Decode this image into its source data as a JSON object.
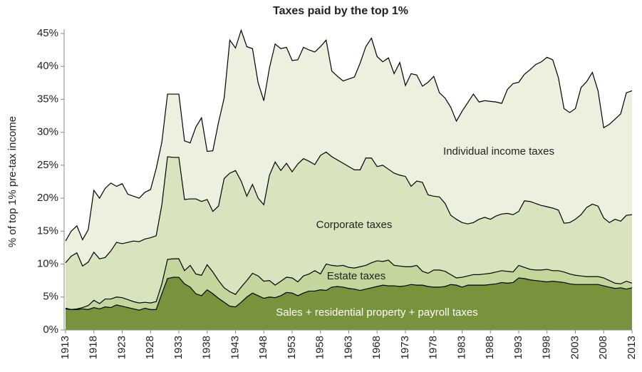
{
  "chart_data": {
    "type": "stacked-area",
    "title": "Taxes paid by the top 1%",
    "y_label": "% of top 1% pre-tax income",
    "x": [
      1913,
      1914,
      1915,
      1916,
      1917,
      1918,
      1919,
      1920,
      1921,
      1922,
      1923,
      1924,
      1925,
      1926,
      1927,
      1928,
      1929,
      1930,
      1931,
      1932,
      1933,
      1934,
      1935,
      1936,
      1937,
      1938,
      1939,
      1940,
      1941,
      1942,
      1943,
      1944,
      1945,
      1946,
      1947,
      1948,
      1949,
      1950,
      1951,
      1952,
      1953,
      1954,
      1955,
      1956,
      1957,
      1958,
      1959,
      1960,
      1961,
      1962,
      1963,
      1964,
      1965,
      1966,
      1967,
      1968,
      1969,
      1970,
      1971,
      1972,
      1973,
      1974,
      1975,
      1976,
      1977,
      1978,
      1979,
      1980,
      1981,
      1982,
      1983,
      1984,
      1985,
      1986,
      1987,
      1988,
      1989,
      1990,
      1991,
      1992,
      1993,
      1994,
      1995,
      1996,
      1997,
      1998,
      1999,
      2000,
      2001,
      2002,
      2003,
      2004,
      2005,
      2006,
      2007,
      2008,
      2009,
      2010,
      2011,
      2012,
      2013
    ],
    "series": [
      {
        "name": "Sales + residential property + payroll taxes",
        "color": "#77933c",
        "values": [
          3.2,
          3.1,
          3.1,
          3.2,
          3.1,
          3.4,
          3.2,
          3.5,
          3.4,
          3.8,
          3.6,
          3.4,
          3.2,
          3.0,
          3.3,
          3.1,
          3.1,
          5.5,
          7.8,
          8.0,
          8.0,
          7.0,
          6.5,
          5.5,
          5.2,
          6.1,
          5.5,
          4.8,
          4.2,
          3.6,
          3.5,
          4.2,
          5.0,
          5.6,
          5.2,
          4.8,
          5.0,
          4.9,
          5.2,
          5.7,
          5.6,
          5.2,
          5.6,
          5.9,
          5.9,
          6.1,
          6.0,
          6.5,
          6.6,
          6.5,
          6.3,
          6.2,
          6.0,
          6.2,
          6.4,
          6.6,
          6.8,
          6.7,
          6.7,
          6.6,
          6.7,
          6.9,
          6.8,
          6.8,
          6.6,
          6.5,
          6.5,
          6.6,
          6.9,
          6.8,
          6.5,
          6.8,
          6.8,
          6.8,
          6.8,
          6.9,
          7.0,
          7.2,
          7.1,
          7.2,
          7.9,
          7.8,
          7.6,
          7.5,
          7.4,
          7.3,
          7.4,
          7.3,
          7.2,
          7.0,
          6.9,
          6.9,
          6.9,
          6.9,
          6.9,
          6.7,
          6.5,
          6.3,
          6.4,
          6.2,
          6.4
        ]
      },
      {
        "name": "Estate taxes",
        "color": "#c3d69b",
        "values": [
          0.1,
          0.0,
          0.1,
          0.2,
          0.6,
          1.1,
          0.8,
          1.2,
          1.3,
          1.2,
          1.3,
          1.2,
          1.1,
          1.1,
          0.9,
          1.0,
          1.2,
          1.5,
          2.9,
          2.8,
          2.8,
          2.0,
          3.3,
          3.0,
          3.1,
          3.8,
          3.3,
          2.7,
          2.2,
          2.2,
          1.9,
          2.3,
          2.5,
          3.0,
          3.0,
          2.6,
          2.5,
          1.9,
          2.2,
          2.3,
          2.3,
          2.1,
          2.6,
          2.6,
          3.1,
          2.4,
          4.0,
          3.3,
          3.1,
          3.3,
          3.2,
          3.2,
          3.6,
          3.6,
          3.8,
          3.9,
          3.6,
          3.9,
          3.1,
          3.1,
          2.9,
          2.7,
          3.0,
          2.1,
          2.0,
          2.6,
          2.6,
          2.3,
          1.5,
          1.1,
          1.5,
          1.4,
          1.6,
          1.6,
          1.7,
          1.7,
          1.8,
          1.8,
          1.8,
          1.6,
          1.9,
          1.7,
          1.6,
          1.6,
          1.7,
          1.9,
          1.6,
          1.7,
          1.6,
          1.5,
          1.4,
          1.3,
          1.2,
          1.2,
          1.2,
          1.2,
          1.0,
          0.8,
          0.6,
          1.2,
          0.7
        ]
      },
      {
        "name": "Corporate taxes",
        "color": "#d7e4bd",
        "values": [
          6.9,
          8.1,
          8.5,
          6.3,
          6.6,
          7.3,
          6.8,
          6.3,
          7.3,
          8.3,
          8.2,
          8.7,
          9.2,
          9.3,
          9.6,
          9.9,
          10.0,
          12.0,
          15.6,
          15.4,
          15.4,
          10.8,
          10.1,
          11.4,
          11.2,
          9.9,
          9.2,
          11.3,
          16.6,
          18.0,
          18.8,
          16.1,
          12.8,
          13.5,
          11.8,
          11.6,
          16.0,
          18.7,
          16.8,
          17.3,
          16.1,
          17.9,
          17.8,
          17.1,
          16.1,
          18.0,
          17.0,
          16.5,
          16.1,
          15.5,
          15.3,
          14.9,
          14.7,
          16.3,
          15.9,
          14.3,
          14.6,
          13.8,
          14.0,
          13.8,
          13.7,
          12.2,
          12.8,
          13.5,
          11.9,
          11.2,
          11.1,
          10.3,
          9.0,
          8.9,
          8.3,
          7.9,
          7.9,
          8.4,
          8.6,
          8.2,
          8.5,
          8.6,
          8.8,
          8.7,
          8.2,
          10.1,
          10.3,
          10.1,
          9.8,
          9.5,
          9.5,
          9.2,
          7.4,
          7.8,
          8.5,
          9.3,
          10.5,
          11.0,
          10.7,
          9.1,
          8.8,
          9.7,
          9.5,
          10.0,
          10.4
        ]
      },
      {
        "name": "Individual income taxes",
        "color": "#ebf1de",
        "values": [
          3.3,
          3.8,
          4.1,
          4.0,
          4.9,
          9.4,
          9.2,
          10.5,
          10.3,
          8.5,
          9.1,
          7.3,
          6.8,
          6.6,
          7.1,
          7.3,
          10.2,
          9.5,
          9.5,
          9.6,
          9.6,
          8.9,
          8.5,
          10.9,
          12.7,
          7.3,
          9.2,
          12.7,
          12.2,
          20.2,
          18.6,
          22.9,
          22.7,
          20.6,
          17.5,
          15.8,
          16.3,
          17.9,
          18.5,
          17.6,
          16.9,
          15.8,
          16.9,
          16.9,
          17.1,
          16.5,
          17.0,
          13.0,
          12.7,
          12.5,
          13.3,
          14.1,
          16.2,
          16.9,
          18.2,
          16.7,
          15.7,
          16.9,
          15.1,
          17.1,
          13.8,
          17.1,
          16.1,
          14.6,
          17.1,
          18.2,
          15.8,
          16.0,
          16.4,
          14.9,
          16.9,
          18.4,
          19.5,
          17.8,
          17.7,
          17.9,
          17.3,
          16.8,
          18.8,
          19.9,
          19.6,
          19.2,
          20.0,
          21.1,
          21.8,
          22.7,
          22.5,
          20.1,
          17.4,
          16.7,
          16.8,
          19.3,
          19.1,
          20.0,
          17.5,
          13.7,
          14.9,
          15.2,
          16.3,
          18.6,
          18.8
        ]
      }
    ],
    "xlim": [
      1913,
      2013
    ],
    "xticks": [
      1913,
      1918,
      1923,
      1928,
      1933,
      1938,
      1943,
      1948,
      1953,
      1958,
      1963,
      1968,
      1973,
      1978,
      1983,
      1988,
      1993,
      1998,
      2003,
      2008,
      2013
    ],
    "ylim": [
      0,
      45
    ],
    "yticks": [
      {
        "value": 0,
        "label": "0%"
      },
      {
        "value": 5,
        "label": "5%"
      },
      {
        "value": 10,
        "label": "10%"
      },
      {
        "value": 15,
        "label": "15%"
      },
      {
        "value": 20,
        "label": "20%"
      },
      {
        "value": 25,
        "label": "25%"
      },
      {
        "value": 30,
        "label": "30%"
      },
      {
        "value": 35,
        "label": "35%"
      },
      {
        "value": 40,
        "label": "40%"
      },
      {
        "value": 45,
        "label": "45%"
      }
    ],
    "grid": false
  }
}
